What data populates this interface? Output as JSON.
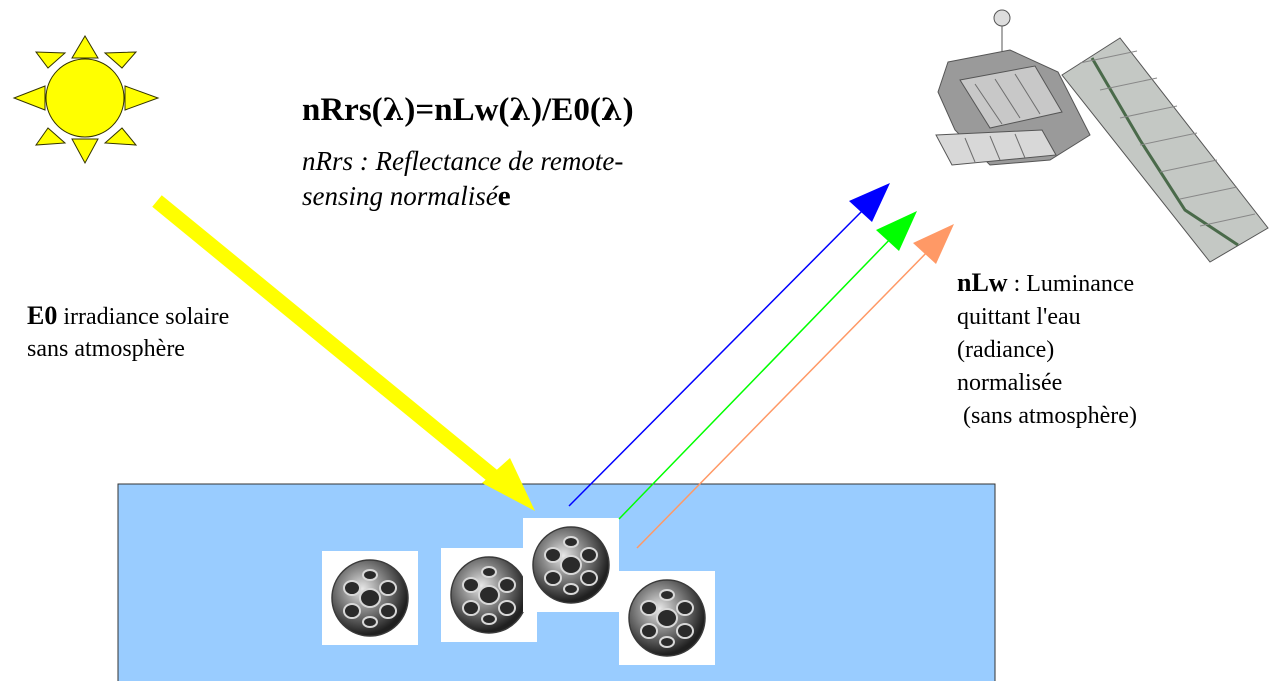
{
  "formula": {
    "part1": "nRrs(",
    "lambda": "λ",
    "part2": ")=nLw(",
    "part3": ")/E0(",
    "part4": ")"
  },
  "subtitle": {
    "line1": "nRrs : Reflectance de remote-",
    "line2": "sensing normalisé",
    "line2_bold": "e"
  },
  "e0_label": {
    "term": "E0",
    "text1": " irradiance solaire",
    "text2": "sans atmosphère"
  },
  "nlw_label": {
    "term": "nLw",
    "text1": " : Luminance",
    "text2": "quittant l'eau",
    "text3": "(radiance)",
    "text4": "normalisée",
    "text5": " (sans atmosphère)"
  },
  "colors": {
    "water": "#99ccff",
    "sun_fill": "#ffff00",
    "incident_arrow": "#ffff00",
    "blue_ray": "#0000ff",
    "green_ray": "#00ff00",
    "orange_ray": "#ff9966",
    "satellite_body": "#9a9a9a"
  },
  "icons": {
    "sun": "sun-icon",
    "satellite": "satellite-icon",
    "coccolith": "coccolithophore-icon"
  }
}
